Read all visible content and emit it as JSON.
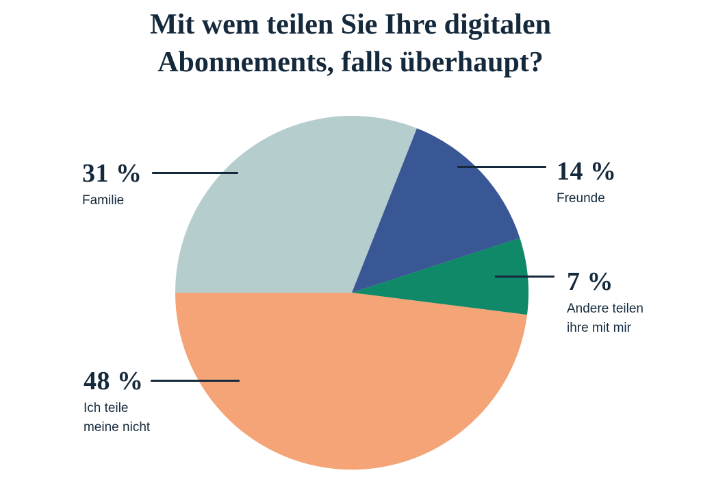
{
  "title": "Mit wem teilen Sie Ihre digitalen\nAbonnements, falls überhaupt?",
  "chart_data": {
    "type": "pie",
    "title": "Mit wem teilen Sie Ihre digitalen Abonnements, falls überhaupt?",
    "unit": "%",
    "start_angle_deg": 180,
    "direction": "clockwise",
    "legend": "none",
    "slices": [
      {
        "label": "Familie",
        "value": 31,
        "pct_label": "31 %",
        "callout_label": "Familie",
        "color": "#B5CECD"
      },
      {
        "label": "Freunde",
        "value": 14,
        "pct_label": "14 %",
        "callout_label": "Freunde",
        "color": "#3A5795"
      },
      {
        "label": "Andere teilen ihre mit mir",
        "value": 7,
        "pct_label": "7 %",
        "callout_label": "Andere teilen\nihre mit mir",
        "color": "#0F8968"
      },
      {
        "label": "Ich teile meine nicht",
        "value": 48,
        "pct_label": "48 %",
        "callout_label": "Ich teile\nmeine nicht",
        "color": "#F4A477"
      }
    ]
  },
  "style": {
    "text_color": "#15293C",
    "leader_line_color": "#15293C",
    "background": "#FFFFFF"
  }
}
